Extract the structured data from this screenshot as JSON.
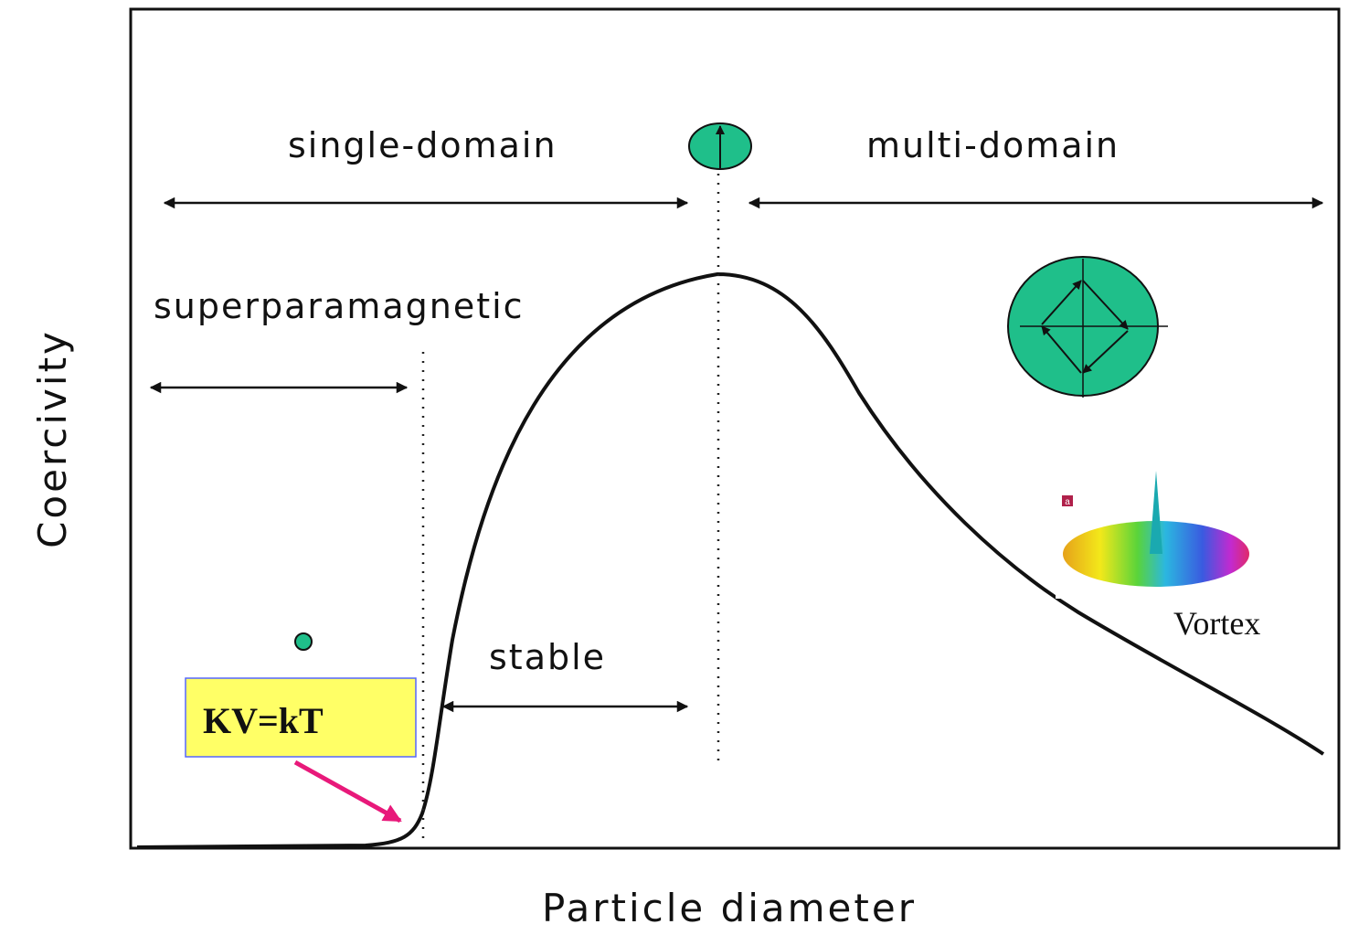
{
  "labels": {
    "single_domain": "single-domain",
    "multi_domain": "multi-domain",
    "superparamagnetic": "superparamagnetic",
    "stable": "stable",
    "equation": "KV=kT",
    "vortex": "Vortex",
    "panel": "a"
  },
  "axes": {
    "y_label": "Coercivity",
    "x_label": "Particle diameter"
  }
}
